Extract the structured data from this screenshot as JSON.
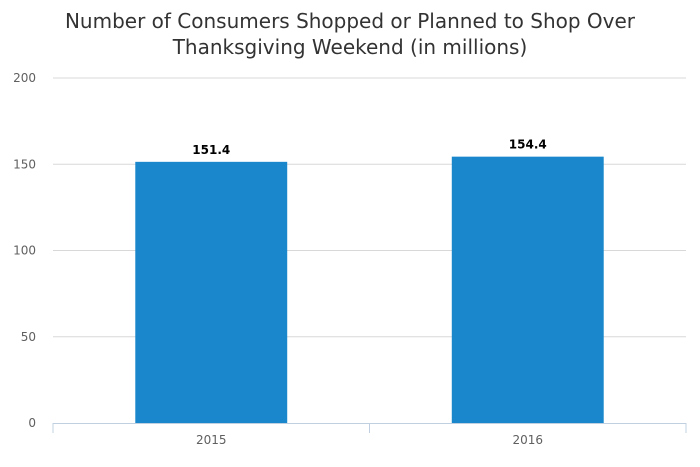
{
  "chart_data": {
    "type": "bar",
    "title_lines": [
      "Number of Consumers Shopped or Planned to Shop Over",
      "Thanksgiving Weekend (in millions)"
    ],
    "categories": [
      "2015",
      "2016"
    ],
    "values": [
      151.4,
      154.4
    ],
    "data_labels": [
      "151.4",
      "154.4"
    ],
    "ylim": [
      0,
      200
    ],
    "yticks": [
      0,
      50,
      100,
      150,
      200
    ],
    "ytick_labels": [
      "0",
      "50",
      "100",
      "150",
      "200"
    ],
    "grid": true,
    "legend": "none",
    "bar_color": "#1a87cc",
    "grid_color": "#d8d8d8",
    "axis_color": "#c0d0e0"
  }
}
